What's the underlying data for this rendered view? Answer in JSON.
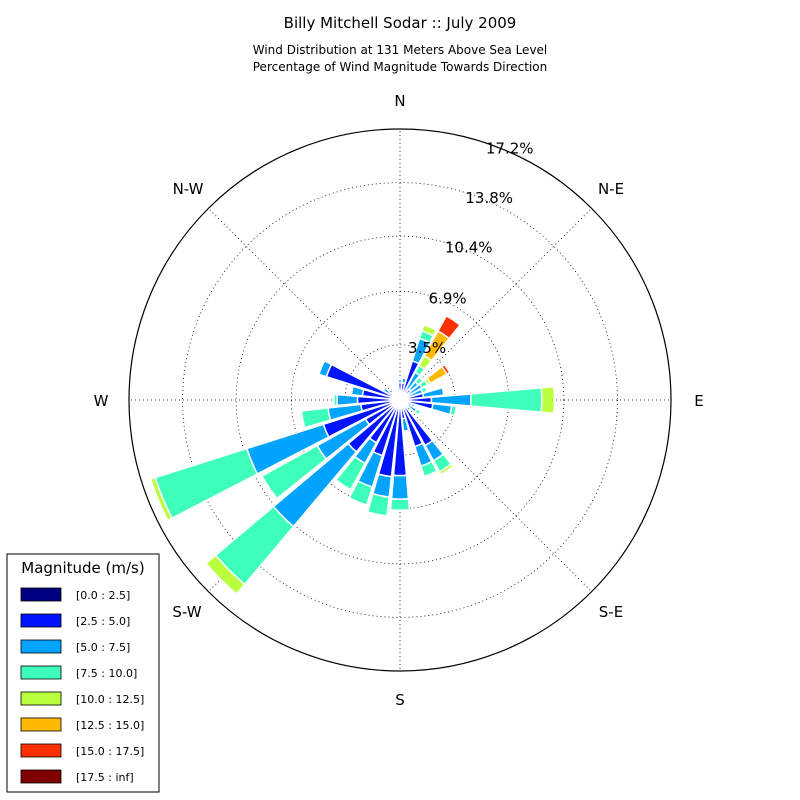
{
  "chart_data": {
    "type": "windrose",
    "title": "Billy Mitchell Sodar :: July 2009",
    "subtitle_lines": [
      "Wind Distribution at 131 Meters Above Sea Level",
      "Percentage of Wind Magnitude Towards Direction"
    ],
    "direction_labels": [
      {
        "name": "N",
        "angle": 0
      },
      {
        "name": "N-E",
        "angle": 45
      },
      {
        "name": "E",
        "angle": 90
      },
      {
        "name": "S-E",
        "angle": 135
      },
      {
        "name": "S",
        "angle": 180
      },
      {
        "name": "S-W",
        "angle": 225
      },
      {
        "name": "W",
        "angle": 270
      },
      {
        "name": "N-W",
        "angle": 315
      }
    ],
    "radial_ticks": [
      3.5,
      6.9,
      10.4,
      13.8,
      17.2
    ],
    "radial_tick_labels": [
      "3.5%",
      "6.9%",
      "10.4%",
      "13.8%",
      "17.2%"
    ],
    "rmax": 17.2,
    "legend": {
      "title": "Magnitude (m/s)",
      "bins": [
        {
          "label": "[0.0 : 2.5]",
          "color": "#000080"
        },
        {
          "label": "[2.5 : 5.0]",
          "color": "#0014ff"
        },
        {
          "label": "[5.0 : 7.5]",
          "color": "#00a4ff"
        },
        {
          "label": "[7.5 : 10.0]",
          "color": "#3dffb9"
        },
        {
          "label": "[10.0 : 12.5]",
          "color": "#b9ff3d"
        },
        {
          "label": "[12.5 : 15.0]",
          "color": "#ffb900"
        },
        {
          "label": "[15.0 : 17.5]",
          "color": "#ff3000"
        },
        {
          "label": "[17.5 : inf]",
          "color": "#800000"
        }
      ]
    },
    "directions": [
      {
        "angle": 0,
        "cumulative": [
          0.5,
          1.1,
          1.3
        ]
      },
      {
        "angle": 11.25,
        "cumulative": [
          0.4,
          1.1,
          1.4
        ]
      },
      {
        "angle": 22.5,
        "cumulative": [
          0.5,
          2.6,
          4.1,
          4.6,
          5.0
        ]
      },
      {
        "angle": 33.75,
        "cumulative": [
          0.3,
          0.8,
          2.0,
          2.5,
          3.2,
          5.0,
          6.1
        ]
      },
      {
        "angle": 45,
        "cumulative": [
          0.3,
          0.9,
          1.5,
          1.9,
          2.0
        ]
      },
      {
        "angle": 56.25,
        "cumulative": [
          0.3,
          0.7,
          1.6,
          2.0,
          2.2,
          3.4,
          3.6
        ]
      },
      {
        "angle": 67.5,
        "cumulative": [
          0.3,
          0.5,
          1.5,
          1.8
        ]
      },
      {
        "angle": 78.75,
        "cumulative": [
          0.3,
          1.5,
          2.8,
          2.9
        ]
      },
      {
        "angle": 90,
        "cumulative": [
          0.4,
          2.0,
          4.5,
          9.0,
          9.8
        ]
      },
      {
        "angle": 101.25,
        "cumulative": [
          0.4,
          2.1,
          3.3,
          3.6
        ]
      },
      {
        "angle": 112.5,
        "cumulative": [
          0.3,
          0.8,
          1.0
        ]
      },
      {
        "angle": 123.75,
        "cumulative": [
          0.2,
          0.6,
          1.2,
          1.5
        ]
      },
      {
        "angle": 135,
        "cumulative": [
          0.1,
          0.4,
          0.5
        ]
      },
      {
        "angle": 146.25,
        "cumulative": [
          0.3,
          3.3,
          4.4,
          5.2,
          5.4
        ]
      },
      {
        "angle": 157.5,
        "cumulative": [
          0.3,
          3.1,
          4.4,
          5.1,
          5.2
        ]
      },
      {
        "angle": 168.75,
        "cumulative": [
          0.2,
          1.2,
          2.0
        ]
      },
      {
        "angle": 180,
        "cumulative": [
          0.4,
          4.8,
          6.3,
          7.0
        ]
      },
      {
        "angle": 191.25,
        "cumulative": [
          0.4,
          4.9,
          6.2,
          7.4
        ]
      },
      {
        "angle": 202.5,
        "cumulative": [
          0.5,
          3.7,
          5.8,
          7.0
        ]
      },
      {
        "angle": 213.75,
        "cumulative": [
          0.5,
          3.1,
          4.6,
          6.5
        ]
      },
      {
        "angle": 225,
        "cumulative": [
          0.5,
          4.3,
          10.5,
          15.3,
          16.1
        ]
      },
      {
        "angle": 236.25,
        "cumulative": [
          0.5,
          2.5,
          6.0,
          10.0
        ]
      },
      {
        "angle": 247.5,
        "cumulative": [
          0.5,
          5.1,
          10.2,
          16.3,
          16.6
        ]
      },
      {
        "angle": 258.75,
        "cumulative": [
          0.5,
          2.5,
          4.6,
          6.3
        ]
      },
      {
        "angle": 270,
        "cumulative": [
          0.5,
          2.7,
          4.0,
          4.2
        ]
      },
      {
        "angle": 281.25,
        "cumulative": [
          0.5,
          2.4,
          3.1
        ]
      },
      {
        "angle": 292.5,
        "cumulative": [
          0.4,
          4.9,
          5.4
        ]
      },
      {
        "angle": 303.75,
        "cumulative": [
          0.2,
          0.8,
          1.2
        ]
      },
      {
        "angle": 315,
        "cumulative": [
          0.4,
          0.6
        ]
      },
      {
        "angle": 326.25,
        "cumulative": [
          0.3,
          0.7
        ]
      },
      {
        "angle": 337.5,
        "cumulative": [
          0.3,
          0.5
        ]
      },
      {
        "angle": 348.75,
        "cumulative": [
          0.4,
          0.7
        ]
      }
    ]
  }
}
